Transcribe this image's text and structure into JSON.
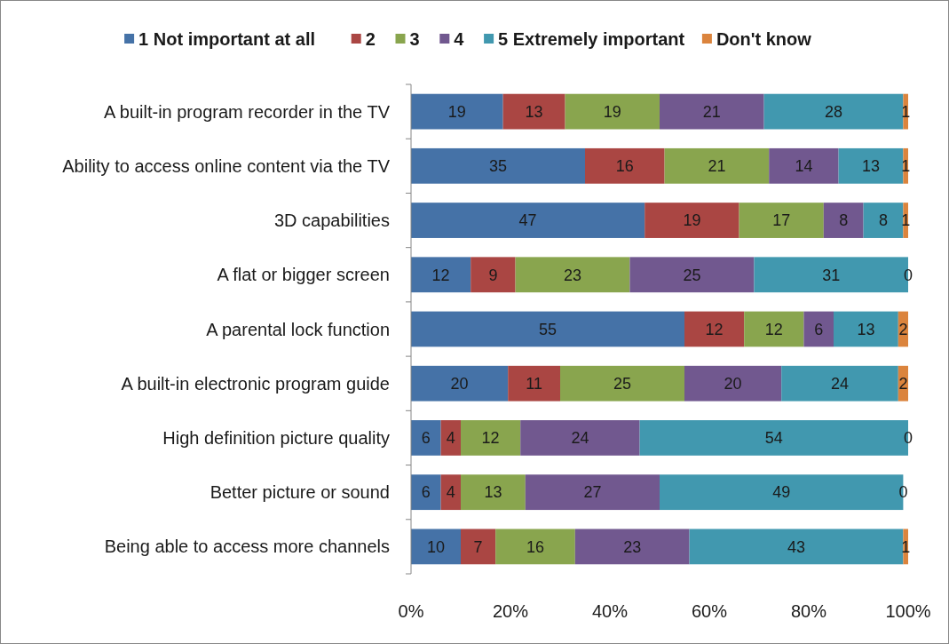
{
  "chart_data": {
    "type": "bar",
    "orientation": "horizontal",
    "stacked": true,
    "legend": "top",
    "categories": [
      "A built-in program recorder in the TV",
      "Ability to access online content via the TV",
      "3D capabilities",
      "A flat or bigger screen",
      "A parental lock function",
      "A built-in electronic program guide",
      "High definition picture quality",
      "Better picture or sound",
      "Being able to access more channels"
    ],
    "xlim": [
      0,
      100
    ],
    "xticks": [
      {
        "value": 0,
        "label": "0%"
      },
      {
        "value": 20,
        "label": "20%"
      },
      {
        "value": 40,
        "label": "40%"
      },
      {
        "value": 60,
        "label": "60%"
      },
      {
        "value": 80,
        "label": "80%"
      },
      {
        "value": 100,
        "label": "100%"
      }
    ],
    "series": [
      {
        "name": "1 Not important at all",
        "color": "#4572a7",
        "values": [
          18.5,
          35,
          47,
          12,
          55,
          19.5,
          6,
          6,
          10
        ],
        "value_labels": [
          "19",
          "35",
          "47",
          "12",
          "55",
          "20",
          "6",
          "6",
          "10"
        ]
      },
      {
        "name": "2",
        "color": "#aa4643",
        "values": [
          12.5,
          16,
          19,
          9,
          12,
          10.5,
          4,
          4,
          7
        ],
        "value_labels": [
          "13",
          "16",
          "19",
          "9",
          "12",
          "11",
          "4",
          "4",
          "7"
        ]
      },
      {
        "name": "3",
        "color": "#89a54e",
        "values": [
          19,
          21,
          17,
          23,
          12,
          25,
          12,
          13,
          16
        ],
        "value_labels": [
          "19",
          "21",
          "17",
          "23",
          "12",
          "25",
          "12",
          "13",
          "16"
        ]
      },
      {
        "name": "4",
        "color": "#71588f",
        "values": [
          21,
          14,
          8,
          25,
          6,
          19.5,
          24,
          27,
          23
        ],
        "value_labels": [
          "21",
          "14",
          "8",
          "25",
          "6",
          "20",
          "24",
          "27",
          "23"
        ]
      },
      {
        "name": "5 Extremely important",
        "color": "#4198af",
        "values": [
          28,
          13,
          8,
          31,
          13,
          23.5,
          54,
          49,
          43
        ],
        "value_labels": [
          "28",
          "13",
          "8",
          "31",
          "13",
          "24",
          "54",
          "49",
          "43"
        ]
      },
      {
        "name": "Don't know",
        "color": "#db843d",
        "values": [
          1,
          1,
          1,
          0,
          2,
          2,
          0,
          0,
          1
        ],
        "value_labels": [
          "1",
          "1",
          "1",
          "0",
          "2",
          "2",
          "0",
          "0",
          "1"
        ]
      }
    ]
  }
}
